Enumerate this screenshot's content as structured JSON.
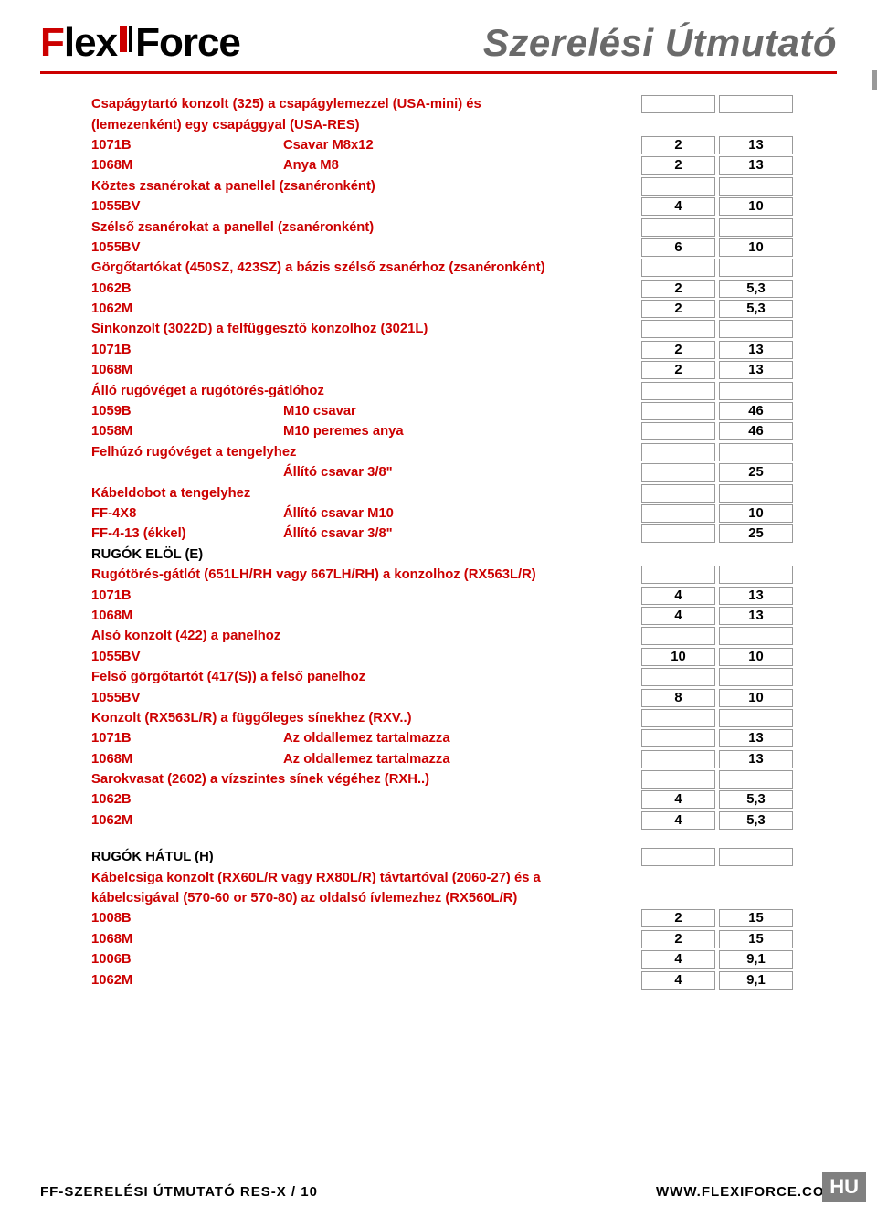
{
  "logo": {
    "text": "FlexiForce"
  },
  "title": "Szerelési Útmutató",
  "footer_left": "FF-SZERELÉSI ÚTMUTATÓ RES-X / 10",
  "footer_right": "WWW.FLEXIFORCE.COM",
  "badge": "HU",
  "rows": [
    {
      "type": "section",
      "c1": "Csapágytartó konzolt (325) a csapágylemezzel (USA-mini) és",
      "boxes": true
    },
    {
      "type": "section",
      "c1": "(lemezenként) egy csapággyal (USA-RES)"
    },
    {
      "type": "data",
      "c1": "1071B",
      "c2": "Csavar M8x12",
      "c3": "2",
      "c4": "13"
    },
    {
      "type": "data",
      "c1": "1068M",
      "c2": "Anya M8",
      "c3": "2",
      "c4": "13"
    },
    {
      "type": "section",
      "c1": "Köztes zsanérokat a panellel (zsanéronként)",
      "boxes": true
    },
    {
      "type": "data",
      "c1": "1055BV",
      "c2": "",
      "c3": "4",
      "c4": "10"
    },
    {
      "type": "section",
      "c1": "Szélső zsanérokat a panellel (zsanéronként)",
      "boxes": true
    },
    {
      "type": "data",
      "c1": "1055BV",
      "c2": "",
      "c3": "6",
      "c4": "10"
    },
    {
      "type": "section",
      "c1": "Görgőtartókat (450SZ, 423SZ) a bázis szélső zsanérhoz (zsanéronként)",
      "boxes": true
    },
    {
      "type": "data",
      "c1": "1062B",
      "c2": "",
      "c3": "2",
      "c4": "5,3"
    },
    {
      "type": "data",
      "c1": "1062M",
      "c2": "",
      "c3": "2",
      "c4": "5,3"
    },
    {
      "type": "section",
      "c1": "Sínkonzolt (3022D) a felfüggesztő konzolhoz (3021L)",
      "boxes": true
    },
    {
      "type": "data",
      "c1": "1071B",
      "c2": "",
      "c3": "2",
      "c4": "13"
    },
    {
      "type": "data",
      "c1": "1068M",
      "c2": "",
      "c3": "2",
      "c4": "13"
    },
    {
      "type": "section",
      "c1": "Álló rugóvéget a rugótörés-gátlóhoz",
      "boxes": true
    },
    {
      "type": "data",
      "c1": "1059B",
      "c2": "M10 csavar",
      "c3": "",
      "c4": "46"
    },
    {
      "type": "data",
      "c1": "1058M",
      "c2": "M10 peremes anya",
      "c3": "",
      "c4": "46"
    },
    {
      "type": "section",
      "c1": "Felhúzó rugóvéget a tengelyhez",
      "boxes": true
    },
    {
      "type": "data",
      "c1": "",
      "c2": "Állító csavar 3/8\"",
      "c3": "",
      "c4": "25"
    },
    {
      "type": "section",
      "c1": "Kábeldobot a tengelyhez",
      "boxes": true
    },
    {
      "type": "data",
      "c1": "FF-4X8",
      "c2": "Állító csavar M10",
      "c3": "",
      "c4": "10"
    },
    {
      "type": "data",
      "c1": "FF-4-13 (ékkel)",
      "c2": "Állító csavar 3/8\"",
      "c3": "",
      "c4": "25"
    },
    {
      "type": "black",
      "c1": "RUGÓK ELÖL (E)"
    },
    {
      "type": "section",
      "c1": "Rugótörés-gátlót (651LH/RH vagy 667LH/RH) a konzolhoz (RX563L/R)",
      "boxes": true
    },
    {
      "type": "data",
      "c1": "1071B",
      "c2": "",
      "c3": "4",
      "c4": "13"
    },
    {
      "type": "data",
      "c1": "1068M",
      "c2": "",
      "c3": "4",
      "c4": "13"
    },
    {
      "type": "section",
      "c1": "Alsó konzolt (422) a panelhoz",
      "boxes": true
    },
    {
      "type": "data",
      "c1": "1055BV",
      "c2": "",
      "c3": "10",
      "c4": "10"
    },
    {
      "type": "section",
      "c1": "Felső görgőtartót (417(S)) a felső panelhoz",
      "boxes": true
    },
    {
      "type": "data",
      "c1": "1055BV",
      "c2": "",
      "c3": "8",
      "c4": "10"
    },
    {
      "type": "section",
      "c1": "Konzolt (RX563L/R) a függőleges sínekhez (RXV..)",
      "boxes": true
    },
    {
      "type": "data",
      "c1": "1071B",
      "c2": "Az oldallemez tartalmazza",
      "c3": "",
      "c4": "13"
    },
    {
      "type": "data",
      "c1": "1068M",
      "c2": "Az oldallemez tartalmazza",
      "c3": "",
      "c4": "13"
    },
    {
      "type": "section",
      "c1": "Sarokvasat (2602) a vízszintes sínek végéhez (RXH..)",
      "boxes": true
    },
    {
      "type": "data",
      "c1": "1062B",
      "c2": "",
      "c3": "4",
      "c4": "5,3"
    },
    {
      "type": "data",
      "c1": "1062M",
      "c2": "",
      "c3": "4",
      "c4": "5,3"
    },
    {
      "type": "spacer"
    },
    {
      "type": "black",
      "c1": "RUGÓK HÁTUL (H)",
      "boxes": true
    },
    {
      "type": "section",
      "c1": "Kábelcsiga konzolt (RX60L/R vagy RX80L/R) távtartóval (2060-27) és a"
    },
    {
      "type": "section",
      "c1": "kábelcsigával (570-60 or 570-80) az oldalsó ívlemezhez (RX560L/R)"
    },
    {
      "type": "data",
      "c1": "1008B",
      "c2": "",
      "c3": "2",
      "c4": "15"
    },
    {
      "type": "data",
      "c1": "1068M",
      "c2": "",
      "c3": "2",
      "c4": "15"
    },
    {
      "type": "data",
      "c1": "1006B",
      "c2": "",
      "c3": "4",
      "c4": "9,1"
    },
    {
      "type": "data",
      "c1": "1062M",
      "c2": "",
      "c3": "4",
      "c4": "9,1"
    }
  ]
}
